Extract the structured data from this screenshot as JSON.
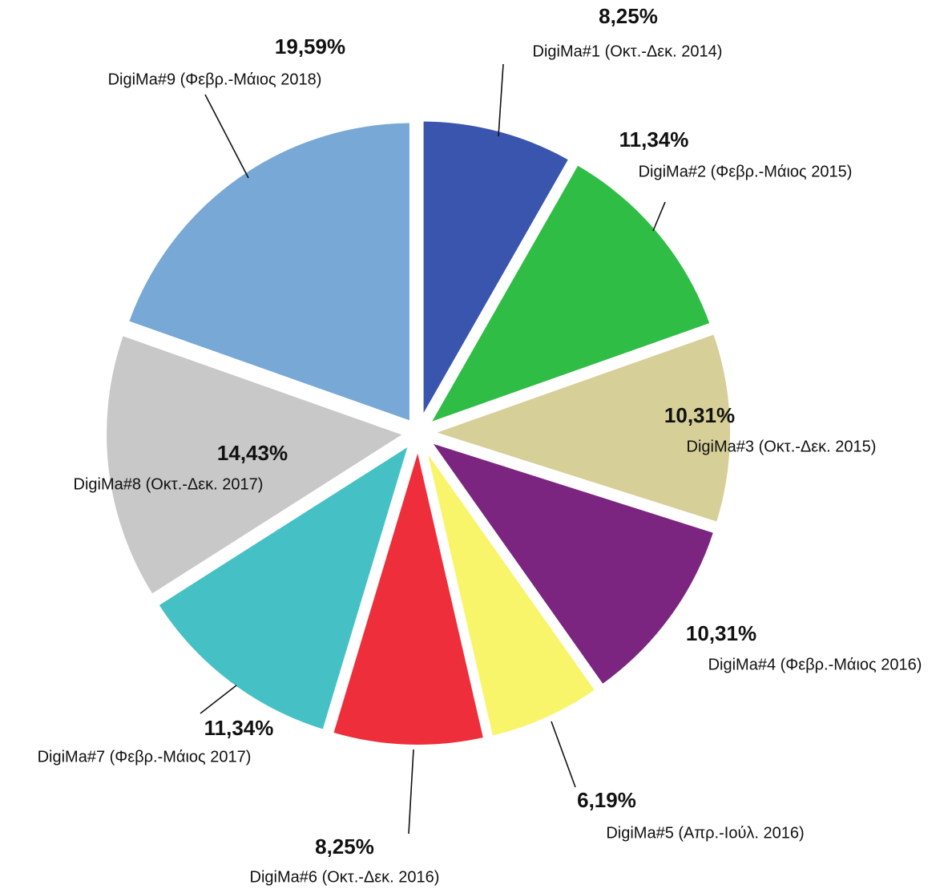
{
  "chart_data": {
    "type": "pie",
    "categories": [
      "DigiMa#1 (Οκτ.-Δεκ. 2014)",
      "DigiMa#2 (Φεβρ.-Μάιος 2015)",
      "DigiMa#3 (Οκτ.-Δεκ. 2015)",
      "DigiMa#4 (Φεβρ.-Μάιος 2016)",
      "DigiMa#5 (Απρ.-Ιούλ. 2016)",
      "DigiMa#6 (Οκτ.-Δεκ. 2016)",
      "DigiMa#7 (Φεβρ.-Μάιος 2017)",
      "DigiMa#8 (Οκτ.-Δεκ. 2017)",
      "DigiMa#9 (Φεβρ.-Μάιος 2018)"
    ],
    "values": [
      8.25,
      11.34,
      10.31,
      10.31,
      6.19,
      8.25,
      11.34,
      14.43,
      19.59
    ],
    "value_labels": [
      "8,25%",
      "11,34%",
      "10,31%",
      "10,31%",
      "6,19%",
      "8,25%",
      "11,34%",
      "14,43%",
      "19,59%"
    ],
    "colors": [
      "#3a55ad",
      "#2fbd45",
      "#d6cf98",
      "#7b2580",
      "#f8f56a",
      "#ee2e3a",
      "#45c1c6",
      "#c8c8c8",
      "#78a8d6"
    ]
  }
}
